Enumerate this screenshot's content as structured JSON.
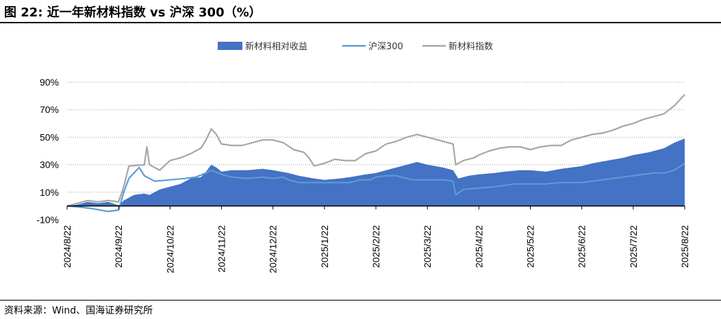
{
  "figure": {
    "title": "图 22:  近一年新材料指数 vs 沪深 300（%）",
    "source": "资料来源：Wind、国海证券研究所"
  },
  "colors": {
    "relative": "#4472c4",
    "hs300": "#5b9bd5",
    "index": "#a6a6a6"
  },
  "chart_data": {
    "type": "area",
    "ylim": [
      -10,
      90
    ],
    "yticks": [
      -10,
      10,
      30,
      50,
      70,
      90
    ],
    "ytick_labels": [
      "-10%",
      "10%",
      "30%",
      "50%",
      "70%",
      "90%"
    ],
    "xtick_labels": [
      "2024/8/22",
      "2024/9/22",
      "2024/10/22",
      "2024/11/22",
      "2024/12/22",
      "2025/1/22",
      "2025/2/22",
      "2025/3/22",
      "2025/4/22",
      "2025/5/22",
      "2025/6/22",
      "2025/7/22",
      "2025/8/22"
    ],
    "legend_position": "top-center",
    "series": [
      {
        "name": "新材料相对收益",
        "kind": "area",
        "points": [
          [
            0,
            0
          ],
          [
            0.2,
            1
          ],
          [
            0.4,
            3
          ],
          [
            0.6,
            2
          ],
          [
            0.8,
            3
          ],
          [
            1,
            0.5
          ],
          [
            1.1,
            4
          ],
          [
            1.3,
            8
          ],
          [
            1.5,
            9
          ],
          [
            1.6,
            8
          ],
          [
            1.8,
            12
          ],
          [
            2,
            14
          ],
          [
            2.2,
            16
          ],
          [
            2.4,
            20
          ],
          [
            2.6,
            21
          ],
          [
            2.7,
            25
          ],
          [
            2.8,
            30
          ],
          [
            2.9,
            28
          ],
          [
            3,
            25
          ],
          [
            3.2,
            26
          ],
          [
            3.5,
            26
          ],
          [
            3.8,
            27
          ],
          [
            4,
            26
          ],
          [
            4.3,
            24
          ],
          [
            4.5,
            22
          ],
          [
            4.8,
            20
          ],
          [
            5,
            19
          ],
          [
            5.3,
            20
          ],
          [
            5.5,
            21
          ],
          [
            5.8,
            23
          ],
          [
            6,
            24
          ],
          [
            6.3,
            27
          ],
          [
            6.5,
            29
          ],
          [
            6.8,
            32
          ],
          [
            7,
            30
          ],
          [
            7.3,
            28
          ],
          [
            7.5,
            26
          ],
          [
            7.6,
            20
          ],
          [
            7.8,
            22
          ],
          [
            8,
            23
          ],
          [
            8.3,
            24
          ],
          [
            8.5,
            25
          ],
          [
            8.8,
            26
          ],
          [
            9,
            26
          ],
          [
            9.3,
            25
          ],
          [
            9.6,
            27
          ],
          [
            9.8,
            28
          ],
          [
            10,
            29
          ],
          [
            10.2,
            31
          ],
          [
            10.5,
            33
          ],
          [
            10.8,
            35
          ],
          [
            11,
            37
          ],
          [
            11.3,
            39
          ],
          [
            11.6,
            42
          ],
          [
            11.8,
            46
          ],
          [
            12,
            49
          ]
        ]
      },
      {
        "name": "沪深300",
        "kind": "line",
        "points": [
          [
            0,
            0
          ],
          [
            0.3,
            -1
          ],
          [
            0.5,
            -2
          ],
          [
            0.8,
            -4
          ],
          [
            1,
            -3
          ],
          [
            1.1,
            10
          ],
          [
            1.2,
            20
          ],
          [
            1.4,
            28
          ],
          [
            1.5,
            22
          ],
          [
            1.7,
            18
          ],
          [
            2,
            19
          ],
          [
            2.3,
            20
          ],
          [
            2.5,
            21
          ],
          [
            2.7,
            24
          ],
          [
            2.8,
            26
          ],
          [
            3,
            23
          ],
          [
            3.2,
            21
          ],
          [
            3.5,
            20
          ],
          [
            3.8,
            21
          ],
          [
            4,
            20
          ],
          [
            4.2,
            21
          ],
          [
            4.3,
            19
          ],
          [
            4.5,
            17
          ],
          [
            4.8,
            17
          ],
          [
            5,
            17
          ],
          [
            5.3,
            17
          ],
          [
            5.5,
            17
          ],
          [
            5.7,
            19
          ],
          [
            5.9,
            19
          ],
          [
            6,
            21
          ],
          [
            6.2,
            22
          ],
          [
            6.4,
            22
          ],
          [
            6.5,
            21
          ],
          [
            6.7,
            19
          ],
          [
            6.9,
            19
          ],
          [
            7,
            19
          ],
          [
            7.3,
            19
          ],
          [
            7.5,
            18
          ],
          [
            7.55,
            8
          ],
          [
            7.7,
            12
          ],
          [
            8,
            13
          ],
          [
            8.3,
            14
          ],
          [
            8.5,
            15
          ],
          [
            8.7,
            16
          ],
          [
            9,
            16
          ],
          [
            9.3,
            16
          ],
          [
            9.6,
            17
          ],
          [
            9.8,
            17
          ],
          [
            10,
            17
          ],
          [
            10.2,
            18
          ],
          [
            10.4,
            19
          ],
          [
            10.6,
            20
          ],
          [
            10.8,
            21
          ],
          [
            11,
            22
          ],
          [
            11.2,
            23
          ],
          [
            11.4,
            24
          ],
          [
            11.6,
            24
          ],
          [
            11.8,
            26
          ],
          [
            12,
            31
          ]
        ]
      },
      {
        "name": "新材料指数",
        "kind": "line",
        "points": [
          [
            0,
            0
          ],
          [
            0.2,
            2
          ],
          [
            0.4,
            4
          ],
          [
            0.6,
            3
          ],
          [
            0.8,
            4
          ],
          [
            1,
            3
          ],
          [
            1.1,
            14
          ],
          [
            1.2,
            29
          ],
          [
            1.5,
            30
          ],
          [
            1.55,
            43
          ],
          [
            1.6,
            30
          ],
          [
            1.8,
            26
          ],
          [
            2,
            33
          ],
          [
            2.2,
            35
          ],
          [
            2.4,
            38
          ],
          [
            2.6,
            42
          ],
          [
            2.7,
            48
          ],
          [
            2.8,
            56
          ],
          [
            2.9,
            52
          ],
          [
            3,
            45
          ],
          [
            3.2,
            44
          ],
          [
            3.4,
            44
          ],
          [
            3.6,
            46
          ],
          [
            3.8,
            48
          ],
          [
            4,
            48
          ],
          [
            4.2,
            46
          ],
          [
            4.4,
            41
          ],
          [
            4.6,
            39
          ],
          [
            4.7,
            35
          ],
          [
            4.8,
            29
          ],
          [
            5,
            31
          ],
          [
            5.2,
            34
          ],
          [
            5.4,
            33
          ],
          [
            5.6,
            33
          ],
          [
            5.8,
            38
          ],
          [
            6,
            40
          ],
          [
            6.2,
            45
          ],
          [
            6.4,
            47
          ],
          [
            6.6,
            50
          ],
          [
            6.8,
            52
          ],
          [
            7,
            50
          ],
          [
            7.2,
            48
          ],
          [
            7.4,
            46
          ],
          [
            7.5,
            45
          ],
          [
            7.55,
            30
          ],
          [
            7.7,
            33
          ],
          [
            7.9,
            35
          ],
          [
            8,
            37
          ],
          [
            8.2,
            40
          ],
          [
            8.4,
            42
          ],
          [
            8.6,
            43
          ],
          [
            8.8,
            43
          ],
          [
            9,
            41
          ],
          [
            9.2,
            43
          ],
          [
            9.4,
            44
          ],
          [
            9.6,
            44
          ],
          [
            9.8,
            48
          ],
          [
            10,
            50
          ],
          [
            10.2,
            52
          ],
          [
            10.4,
            53
          ],
          [
            10.6,
            55
          ],
          [
            10.8,
            58
          ],
          [
            11,
            60
          ],
          [
            11.2,
            63
          ],
          [
            11.4,
            65
          ],
          [
            11.6,
            67
          ],
          [
            11.8,
            73
          ],
          [
            12,
            81
          ]
        ]
      }
    ]
  }
}
